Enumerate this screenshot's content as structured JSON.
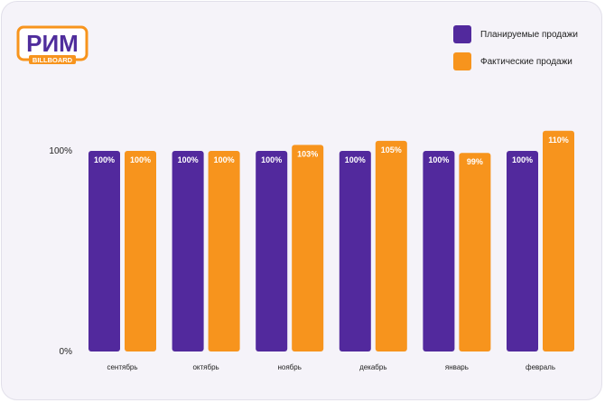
{
  "brand": {
    "name": "РИМ",
    "sub": "BILLBOARD",
    "color": "#f7941d",
    "text_color": "#4f2d9c"
  },
  "colors": {
    "planned": "#52299d",
    "actual": "#f7941d"
  },
  "chart_data": {
    "type": "bar",
    "categories": [
      "сентябрь",
      "октябрь",
      "ноябрь",
      "декабрь",
      "январь",
      "февраль"
    ],
    "series": [
      {
        "name": "Планируемые продажи",
        "values": [
          100,
          100,
          100,
          100,
          100,
          100
        ],
        "labels": [
          "100%",
          "100%",
          "100%",
          "100%",
          "100%",
          "100%"
        ],
        "color": "#52299d"
      },
      {
        "name": "Фактические продажи",
        "values": [
          100,
          100,
          103,
          105,
          99,
          110
        ],
        "labels": [
          "100%",
          "100%",
          "103%",
          "105%",
          "99%",
          "110%"
        ],
        "color": "#f7941d"
      }
    ],
    "yticks": [
      {
        "value": 0,
        "label": "0%"
      },
      {
        "value": 100,
        "label": "100%"
      }
    ],
    "ylim": [
      0,
      110
    ],
    "legend_position": "top-right",
    "grid": false
  }
}
